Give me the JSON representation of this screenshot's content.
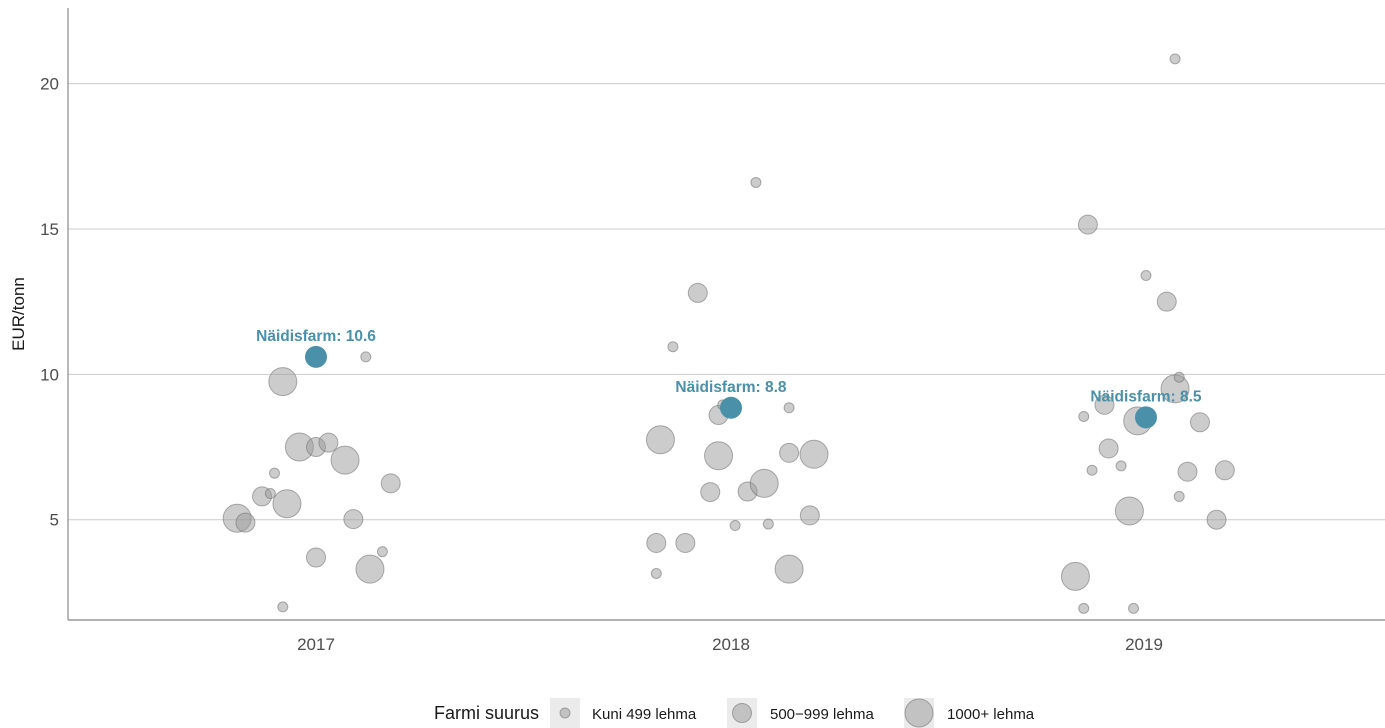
{
  "chart_data": {
    "type": "scatter",
    "title": "",
    "xlabel": "",
    "ylabel": "EUR/tonn",
    "categories": [
      "2017",
      "2018",
      "2019"
    ],
    "ylim": [
      1.55,
      22.6
    ],
    "yticks": [
      5,
      10,
      15,
      20
    ],
    "grid": "horizontal",
    "legend_position": "bottom",
    "size_legend": {
      "title": "Farmi suurus",
      "entries": [
        "Kuni 499 lehma",
        "500−999 lehma",
        "1000+ lehma"
      ]
    },
    "colors": {
      "points": "#999999",
      "highlight": "#4a90a8",
      "grid": "#cccccc",
      "axis": "#999999"
    },
    "highlight": [
      {
        "year": "2017",
        "x": 2017.0,
        "y": 10.6,
        "label": "Näidisfarm: 10.6"
      },
      {
        "year": "2018",
        "x": 2018.0,
        "y": 8.85,
        "label": "Näidisfarm: 8.8"
      },
      {
        "year": "2019",
        "x": 2019.0,
        "y": 8.52,
        "label": "Näidisfarm: 8.5"
      }
    ],
    "points": [
      {
        "x": 2016.81,
        "y": 5.05,
        "size": "1000+ lehma"
      },
      {
        "x": 2016.83,
        "y": 4.9,
        "size": "500−999 lehma"
      },
      {
        "x": 2016.87,
        "y": 5.8,
        "size": "500−999 lehma"
      },
      {
        "x": 2016.89,
        "y": 5.9,
        "size": "Kuni 499 lehma"
      },
      {
        "x": 2016.9,
        "y": 6.6,
        "size": "Kuni 499 lehma"
      },
      {
        "x": 2016.92,
        "y": 9.75,
        "size": "1000+ lehma"
      },
      {
        "x": 2016.93,
        "y": 5.55,
        "size": "1000+ lehma"
      },
      {
        "x": 2016.92,
        "y": 2.0,
        "size": "Kuni 499 lehma"
      },
      {
        "x": 2016.96,
        "y": 7.5,
        "size": "1000+ lehma"
      },
      {
        "x": 2017.0,
        "y": 7.5,
        "size": "500−999 lehma"
      },
      {
        "x": 2017.0,
        "y": 3.7,
        "size": "500−999 lehma"
      },
      {
        "x": 2017.03,
        "y": 7.65,
        "size": "500−999 lehma"
      },
      {
        "x": 2017.07,
        "y": 7.05,
        "size": "1000+ lehma"
      },
      {
        "x": 2017.09,
        "y": 5.02,
        "size": "500−999 lehma"
      },
      {
        "x": 2017.12,
        "y": 10.6,
        "size": "Kuni 499 lehma"
      },
      {
        "x": 2017.13,
        "y": 3.3,
        "size": "1000+ lehma"
      },
      {
        "x": 2017.16,
        "y": 3.9,
        "size": "Kuni 499 lehma"
      },
      {
        "x": 2017.18,
        "y": 6.25,
        "size": "500−999 lehma"
      },
      {
        "x": 2017.82,
        "y": 4.2,
        "size": "500−999 lehma"
      },
      {
        "x": 2017.82,
        "y": 3.15,
        "size": "Kuni 499 lehma"
      },
      {
        "x": 2017.83,
        "y": 7.75,
        "size": "1000+ lehma"
      },
      {
        "x": 2017.86,
        "y": 10.95,
        "size": "Kuni 499 lehma"
      },
      {
        "x": 2017.89,
        "y": 4.2,
        "size": "500−999 lehma"
      },
      {
        "x": 2017.92,
        "y": 12.8,
        "size": "500−999 lehma"
      },
      {
        "x": 2017.95,
        "y": 5.95,
        "size": "500−999 lehma"
      },
      {
        "x": 2017.97,
        "y": 7.2,
        "size": "1000+ lehma"
      },
      {
        "x": 2017.97,
        "y": 8.6,
        "size": "500−999 lehma"
      },
      {
        "x": 2017.98,
        "y": 8.95,
        "size": "Kuni 499 lehma"
      },
      {
        "x": 2018.01,
        "y": 4.8,
        "size": "Kuni 499 lehma"
      },
      {
        "x": 2018.04,
        "y": 5.97,
        "size": "500−999 lehma"
      },
      {
        "x": 2018.06,
        "y": 16.6,
        "size": "Kuni 499 lehma"
      },
      {
        "x": 2018.08,
        "y": 6.25,
        "size": "1000+ lehma"
      },
      {
        "x": 2018.09,
        "y": 4.85,
        "size": "Kuni 499 lehma"
      },
      {
        "x": 2018.14,
        "y": 7.3,
        "size": "500−999 lehma"
      },
      {
        "x": 2018.14,
        "y": 3.3,
        "size": "1000+ lehma"
      },
      {
        "x": 2018.14,
        "y": 8.85,
        "size": "Kuni 499 lehma"
      },
      {
        "x": 2018.19,
        "y": 5.15,
        "size": "500−999 lehma"
      },
      {
        "x": 2018.2,
        "y": 7.25,
        "size": "1000+ lehma"
      },
      {
        "x": 2018.83,
        "y": 3.05,
        "size": "1000+ lehma"
      },
      {
        "x": 2018.85,
        "y": 8.55,
        "size": "Kuni 499 lehma"
      },
      {
        "x": 2018.85,
        "y": 1.95,
        "size": "Kuni 499 lehma"
      },
      {
        "x": 2018.86,
        "y": 15.15,
        "size": "500−999 lehma"
      },
      {
        "x": 2018.87,
        "y": 6.7,
        "size": "Kuni 499 lehma"
      },
      {
        "x": 2018.9,
        "y": 8.95,
        "size": "500−999 lehma"
      },
      {
        "x": 2018.91,
        "y": 7.45,
        "size": "500−999 lehma"
      },
      {
        "x": 2018.94,
        "y": 6.85,
        "size": "Kuni 499 lehma"
      },
      {
        "x": 2018.96,
        "y": 5.3,
        "size": "1000+ lehma"
      },
      {
        "x": 2018.97,
        "y": 1.95,
        "size": "Kuni 499 lehma"
      },
      {
        "x": 2018.98,
        "y": 8.4,
        "size": "1000+ lehma"
      },
      {
        "x": 2019.0,
        "y": 13.4,
        "size": "Kuni 499 lehma"
      },
      {
        "x": 2019.05,
        "y": 12.5,
        "size": "500−999 lehma"
      },
      {
        "x": 2019.07,
        "y": 9.5,
        "size": "1000+ lehma"
      },
      {
        "x": 2019.07,
        "y": 20.85,
        "size": "Kuni 499 lehma"
      },
      {
        "x": 2019.08,
        "y": 5.8,
        "size": "Kuni 499 lehma"
      },
      {
        "x": 2019.08,
        "y": 9.9,
        "size": "Kuni 499 lehma"
      },
      {
        "x": 2019.1,
        "y": 6.65,
        "size": "500−999 lehma"
      },
      {
        "x": 2019.13,
        "y": 8.35,
        "size": "500−999 lehma"
      },
      {
        "x": 2019.17,
        "y": 5.0,
        "size": "500−999 lehma"
      },
      {
        "x": 2019.19,
        "y": 6.7,
        "size": "500−999 lehma"
      }
    ]
  }
}
